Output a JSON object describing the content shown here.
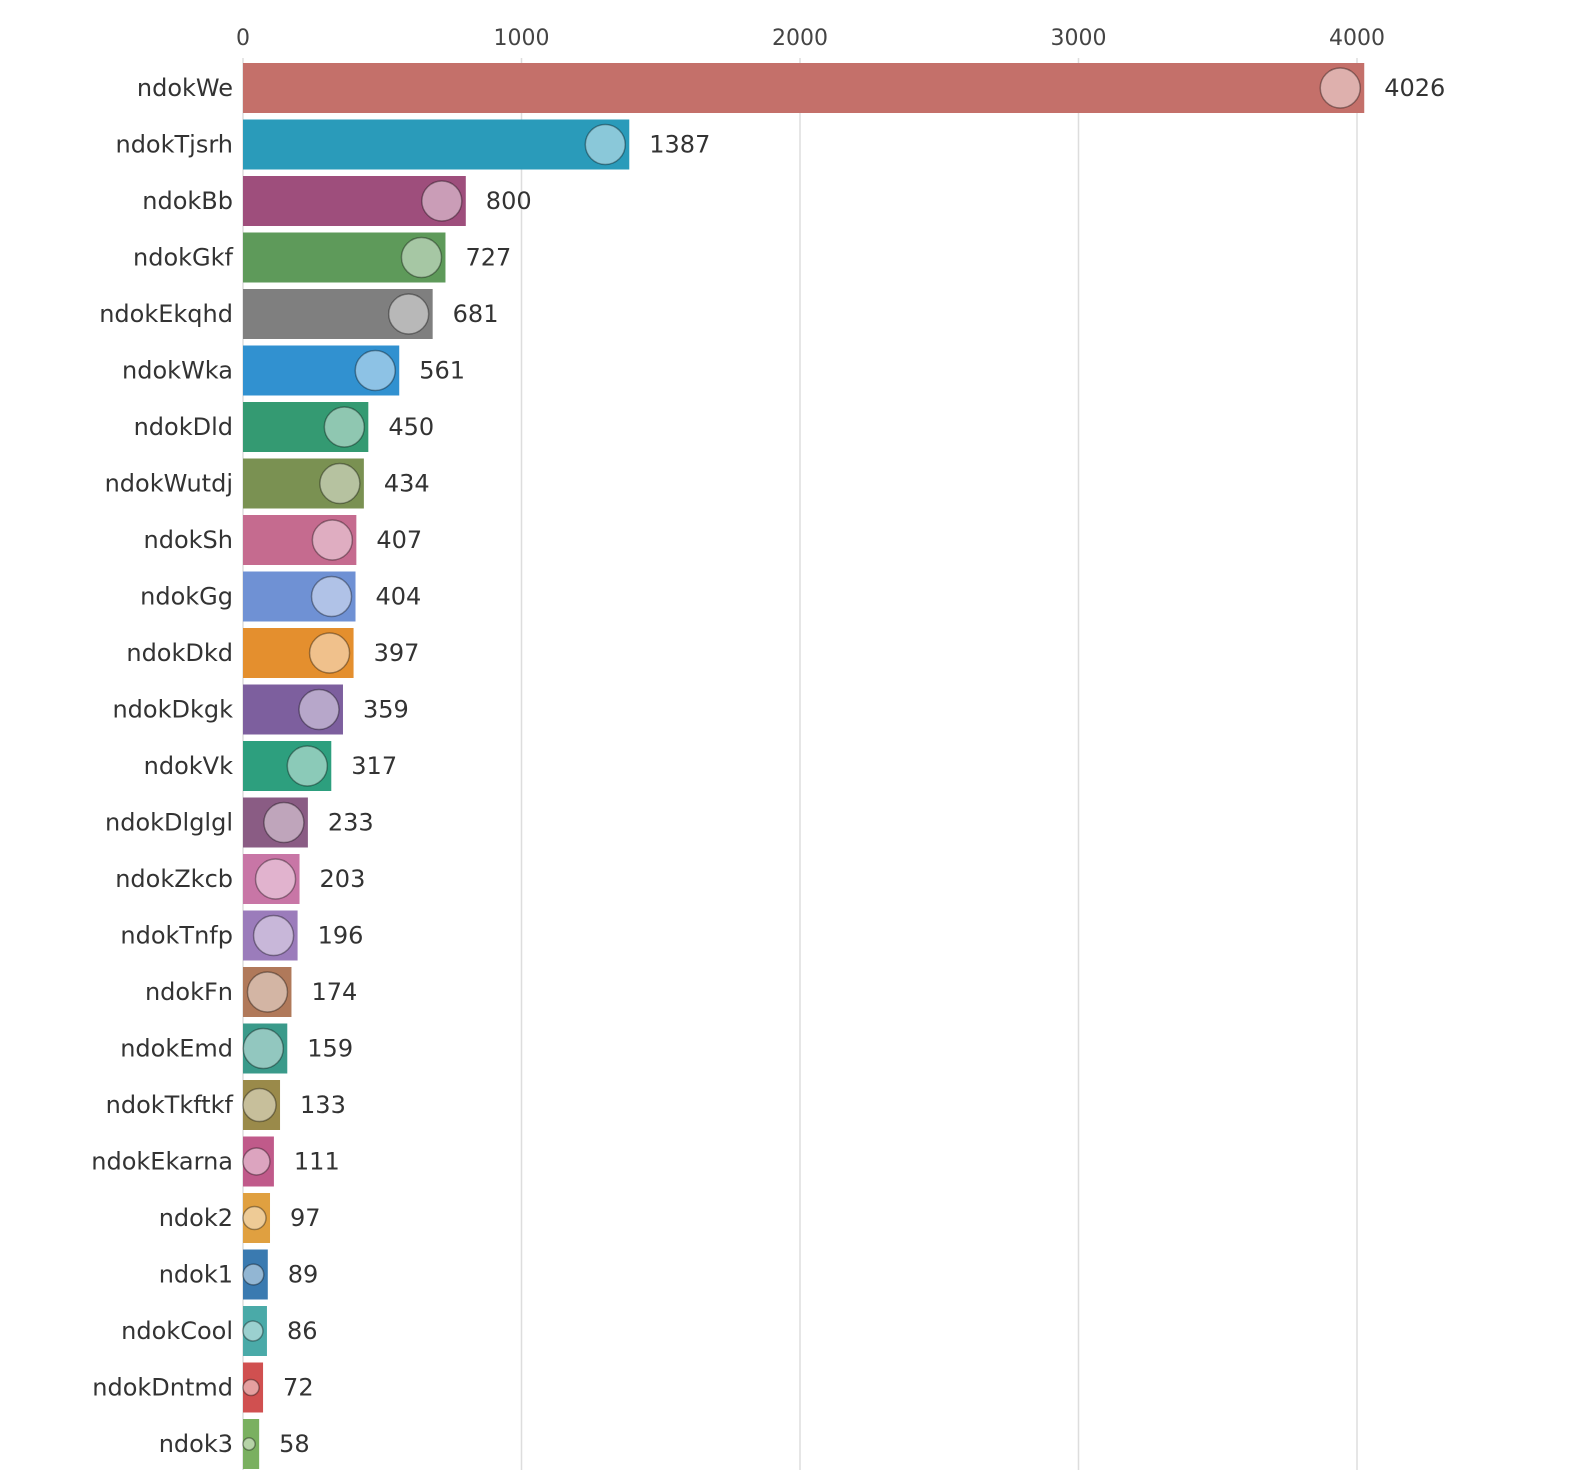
{
  "chart_data": {
    "type": "bar",
    "orientation": "horizontal",
    "title": "",
    "xlabel": "",
    "ylabel": "",
    "xlim": [
      0,
      4250
    ],
    "xticks": [
      0,
      1000,
      2000,
      3000,
      4000
    ],
    "grid": "vertical",
    "legend": "none",
    "categories": [
      "ndokWe",
      "ndokTjsrh",
      "ndokBb",
      "ndokGkf",
      "ndokEkqhd",
      "ndokWka",
      "ndokDld",
      "ndokWutdj",
      "ndokSh",
      "ndokGg",
      "ndokDkd",
      "ndokDkgk",
      "ndokVk",
      "ndokDlglgl",
      "ndokZkcb",
      "ndokTnfp",
      "ndokFn",
      "ndokEmd",
      "ndokTkftkf",
      "ndokEkarna",
      "ndok2",
      "ndok1",
      "ndokCool",
      "ndokDntmd",
      "ndok3"
    ],
    "values": [
      4026,
      1387,
      800,
      727,
      681,
      561,
      450,
      434,
      407,
      404,
      397,
      359,
      317,
      233,
      203,
      196,
      174,
      159,
      133,
      111,
      97,
      89,
      86,
      72,
      58
    ],
    "colors": [
      "#c4706a",
      "#2a9bba",
      "#9e4e7c",
      "#5e9a5a",
      "#7f7f7f",
      "#3191d0",
      "#349a72",
      "#7a9152",
      "#c56b8f",
      "#6f91d4",
      "#e48f2e",
      "#7d5f9e",
      "#2d9f7e",
      "#8a5c84",
      "#c876a6",
      "#9b7cbb",
      "#b0795a",
      "#3a9a8a",
      "#9a8a4a",
      "#c05a8a",
      "#e0a040",
      "#3a7ab0",
      "#4aaaa8",
      "#d05050",
      "#7ab060"
    ]
  }
}
